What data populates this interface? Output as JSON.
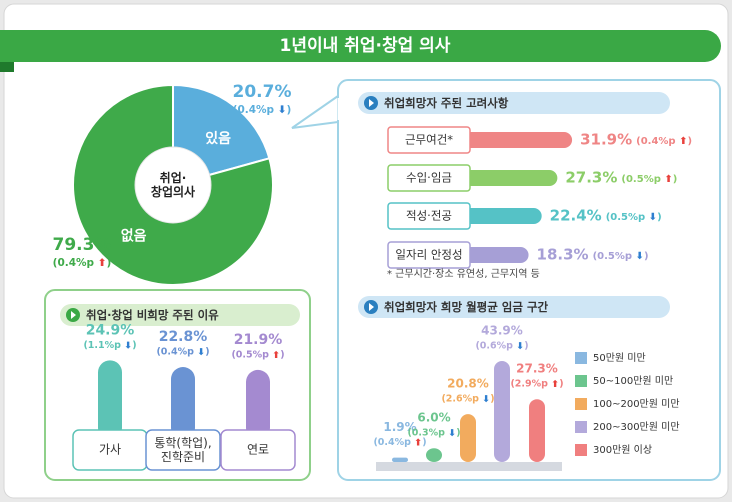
{
  "title": "1년이내 취업·창업 의사",
  "chart_data": [
    {
      "type": "pie",
      "center_label": "취업·\n창업의사",
      "categories": [
        "있음",
        "없음"
      ],
      "values": [
        20.7,
        79.3
      ],
      "value_labels": [
        "20.7%",
        "79.3%"
      ],
      "change_labels": [
        "(0.4%p ⬇)",
        "(0.4%p ⬆)"
      ],
      "colors": [
        "#5aaedc",
        "#3faa4a"
      ]
    },
    {
      "type": "bar",
      "title": "취업·창업 비희망 주된 이유",
      "categories": [
        "가사",
        "통학(학업),\n진학준비",
        "연로"
      ],
      "values": [
        24.9,
        22.8,
        21.9
      ],
      "value_labels": [
        "24.9%",
        "22.8%",
        "21.9%"
      ],
      "change_labels": [
        "(1.1%p ⬇)",
        "(0.4%p ⬇)",
        "(0.5%p ⬆)"
      ],
      "colors": [
        "#5cc3b5",
        "#6a93d3",
        "#a48ad0"
      ]
    },
    {
      "type": "hbar",
      "title": "취업희망자 주된 고려사항",
      "categories": [
        "근무여건*",
        "수입·임금",
        "적성·전공",
        "일자리 안정성"
      ],
      "values": [
        31.9,
        27.3,
        22.4,
        18.3
      ],
      "value_labels": [
        "31.9%",
        "27.3%",
        "22.4%",
        "18.3%"
      ],
      "change_labels": [
        "(0.4%p ⬆)",
        "(0.5%p ⬆)",
        "(0.5%p ⬇)",
        "(0.5%p ⬇)"
      ],
      "colors": [
        "#ef8585",
        "#8ccd68",
        "#55c2c6",
        "#a69fd6"
      ],
      "footnote": "* 근무시간·장소 유연성, 근무지역 등"
    },
    {
      "type": "bar",
      "title": "취업희망자 희망 월평균 임금 구간",
      "categories": [
        "50만원 미만",
        "50~100만원 미만",
        "100~200만원 미만",
        "200~300만원 미만",
        "300만원 이상"
      ],
      "values": [
        1.9,
        6.0,
        20.8,
        43.9,
        27.3
      ],
      "value_labels": [
        "1.9%",
        "6.0%",
        "20.8%",
        "43.9%",
        "27.3%"
      ],
      "change_labels": [
        "(0.4%p ⬆)",
        "(0.3%p ⬇)",
        "(2.6%p ⬇)",
        "(0.6%p ⬇)",
        "(2.9%p ⬆)"
      ],
      "colors": [
        "#8ab8e0",
        "#6cc58e",
        "#f2ab5e",
        "#b3a9db",
        "#f07f7f"
      ],
      "legend": "right"
    }
  ]
}
